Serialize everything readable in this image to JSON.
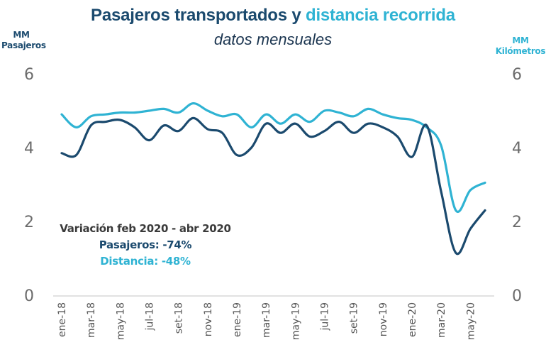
{
  "chart_data": {
    "type": "line",
    "title_part1": "Pasajeros transportados y",
    "title_part2": "distancia recorrida",
    "subtitle": "datos mensuales",
    "ylabel_left": [
      "MM",
      "Pasajeros"
    ],
    "ylabel_right": [
      "MM",
      "Kilómetros"
    ],
    "ylim_left": [
      0,
      6
    ],
    "ylim_right": [
      0,
      6
    ],
    "yticks_left": [
      0,
      2,
      4,
      6
    ],
    "yticks_right": [
      0,
      2,
      4,
      6
    ],
    "x": [
      "ene-18",
      "feb-18",
      "mar-18",
      "abr-18",
      "may-18",
      "jun-18",
      "jul-18",
      "ago-18",
      "set-18",
      "oct-18",
      "nov-18",
      "dic-18",
      "ene-19",
      "feb-19",
      "mar-19",
      "abr-19",
      "may-19",
      "jun-19",
      "jul-19",
      "ago-19",
      "set-19",
      "oct-19",
      "nov-19",
      "dic-19",
      "ene-20",
      "feb-20",
      "mar-20",
      "abr-20",
      "may-20",
      "jun-20"
    ],
    "xtick_labels": [
      "ene-18",
      "mar-18",
      "may-18",
      "jul-18",
      "set-18",
      "nov-18",
      "ene-19",
      "mar-19",
      "may-19",
      "jul-19",
      "set-19",
      "nov-19",
      "ene-20",
      "mar-20",
      "may-20"
    ],
    "grid": false,
    "series": [
      {
        "name": "Pasajeros",
        "axis": "left",
        "color": "#1b4a6e",
        "values": [
          3.85,
          3.8,
          4.6,
          4.7,
          4.75,
          4.55,
          4.2,
          4.6,
          4.45,
          4.8,
          4.5,
          4.4,
          3.8,
          4.0,
          4.65,
          4.4,
          4.65,
          4.3,
          4.45,
          4.7,
          4.4,
          4.65,
          4.55,
          4.3,
          3.75,
          4.6,
          2.8,
          1.15,
          1.8,
          2.3
        ]
      },
      {
        "name": "Distancia",
        "axis": "right",
        "color": "#2fb3d3",
        "values": [
          4.9,
          4.55,
          4.85,
          4.9,
          4.95,
          4.95,
          5.0,
          5.05,
          4.95,
          5.2,
          5.0,
          4.85,
          4.9,
          4.55,
          4.9,
          4.65,
          4.9,
          4.7,
          5.0,
          4.95,
          4.85,
          5.05,
          4.9,
          4.8,
          4.75,
          4.55,
          4.05,
          2.3,
          2.85,
          3.05
        ]
      }
    ],
    "annotation": {
      "line1": "Variación feb 2020 - abr 2020",
      "line2": "Pasajeros: -74%",
      "line3": "Distancia: -48%"
    },
    "axis_line_color": "#d9d9d9"
  }
}
